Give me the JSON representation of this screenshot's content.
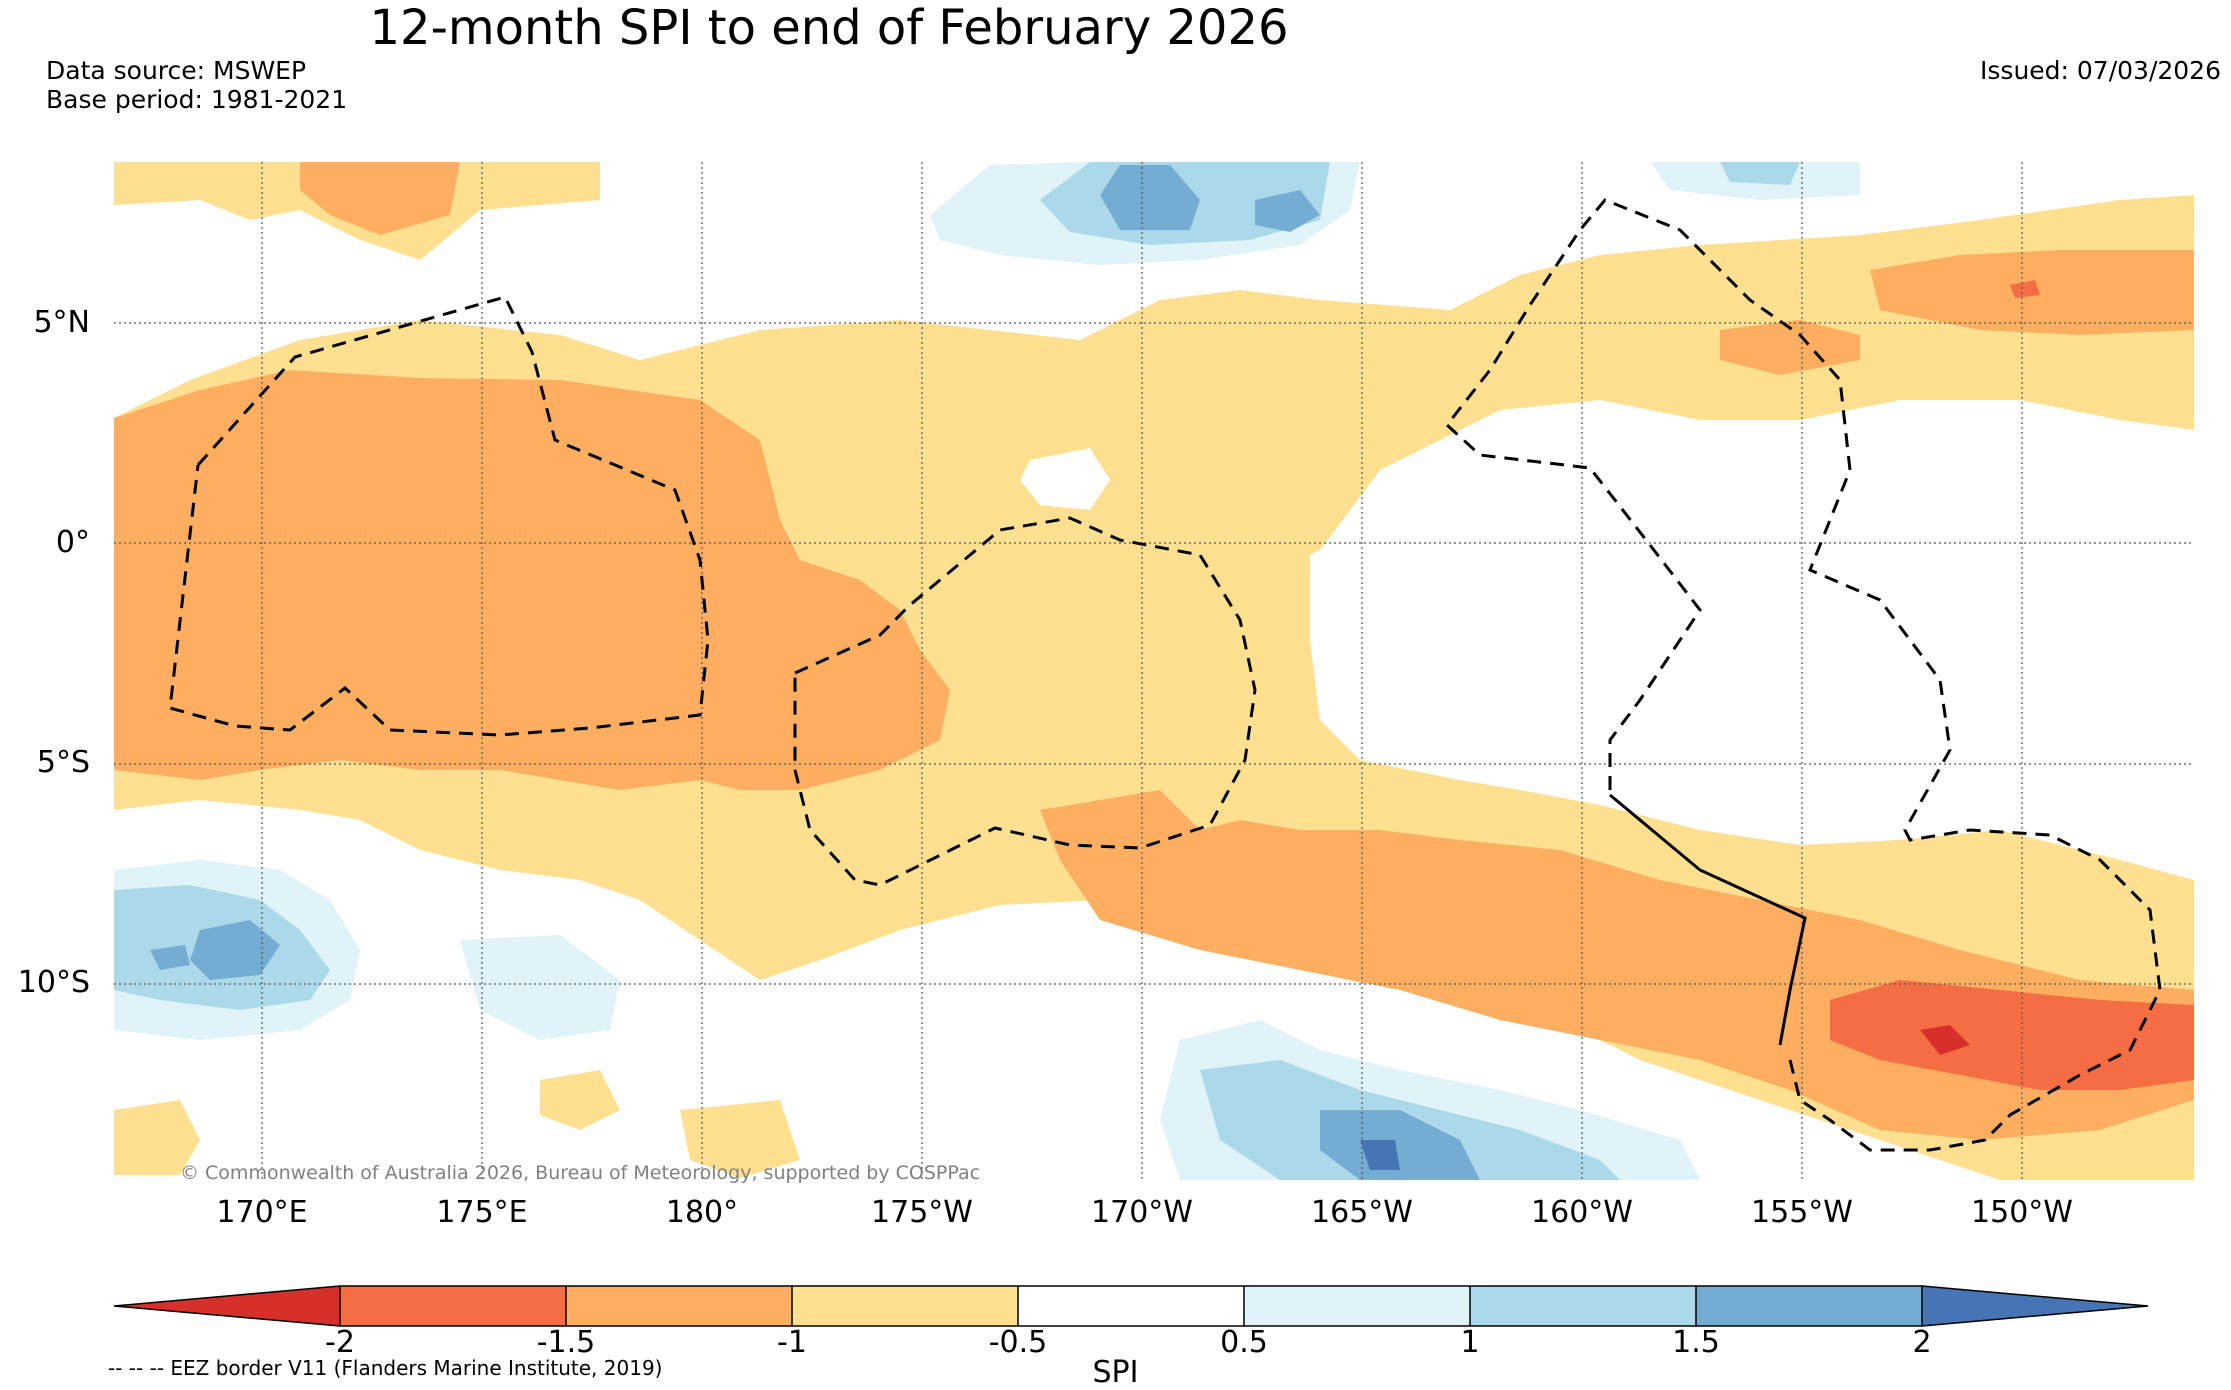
{
  "header": {
    "title": "12-month SPI to end of February 2026",
    "source_line": "Data source: MSWEP",
    "base_period_line": "Base period: 1981-2021",
    "issued": "Issued: 07/03/2026"
  },
  "map": {
    "lat_labels": [
      "5°N",
      "0°",
      "5°S",
      "10°S"
    ],
    "lon_labels": [
      "170°E",
      "175°E",
      "180°",
      "175°W",
      "170°W",
      "165°W",
      "160°W",
      "155°W",
      "150°W"
    ],
    "copyright": "© Commonwealth of Australia 2026, Bureau of Meteorology, supported by COSPPac",
    "gridline_color": "#555555",
    "eez_color": "#000000"
  },
  "colorbar": {
    "title": "SPI",
    "ticks": [
      "-2",
      "-1.5",
      "-1",
      "-0.5",
      "0.5",
      "1",
      "1.5",
      "2"
    ],
    "colors": [
      "#d7302a",
      "#f46d43",
      "#fdae61",
      "#fee090",
      "#ffffff",
      "#e0f3f8",
      "#abd9e9",
      "#74add1",
      "#4575b4"
    ]
  },
  "footnote": "-- -- -- EEZ border V11 (Flanders Marine Institute, 2019)"
}
